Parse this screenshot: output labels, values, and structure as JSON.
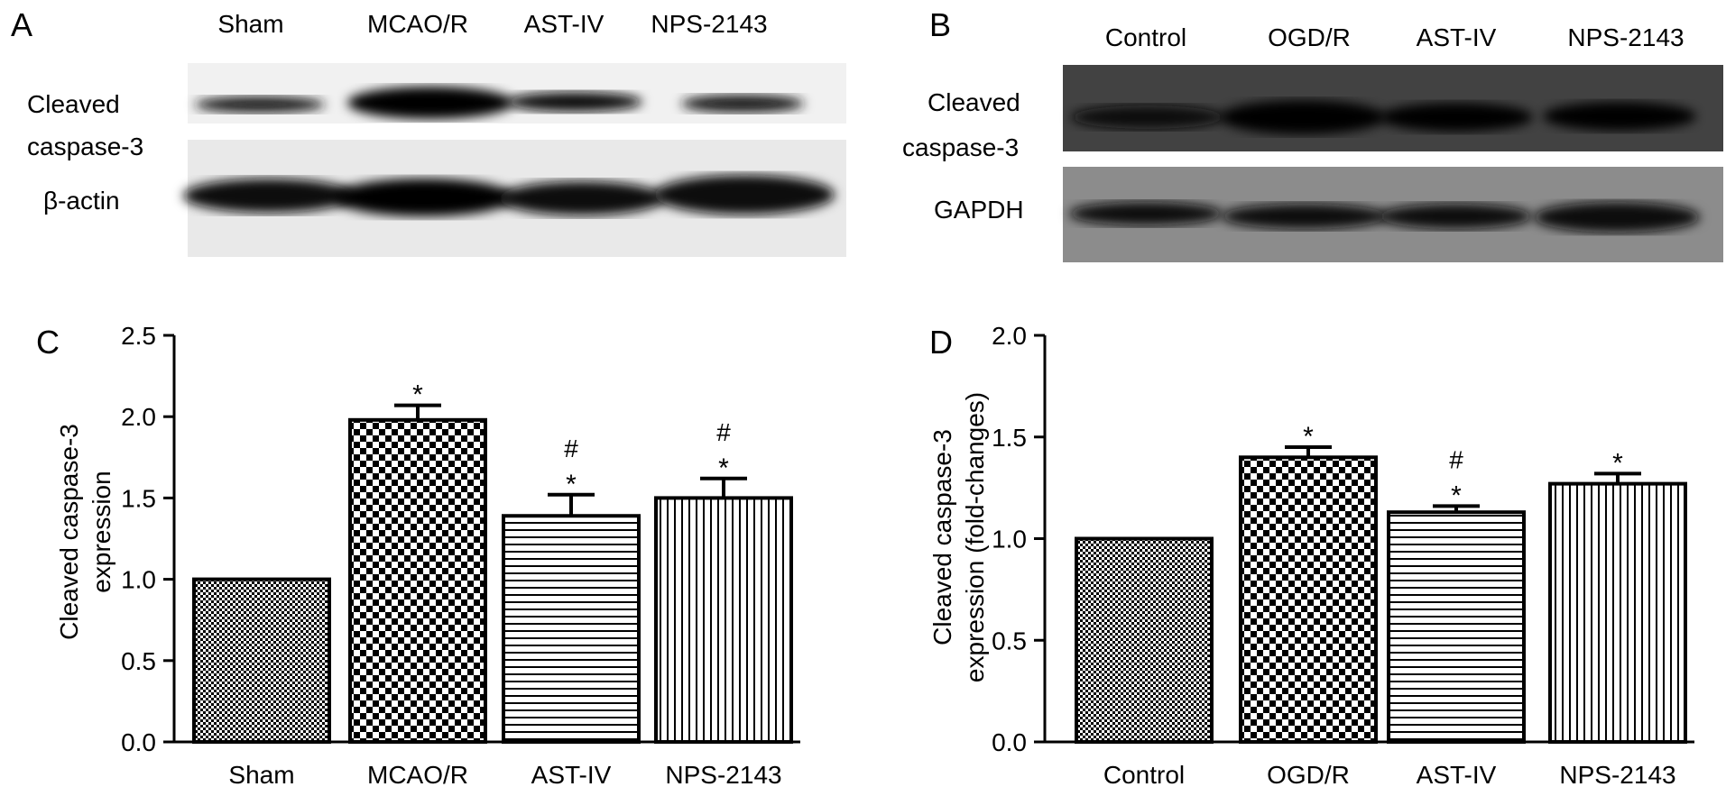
{
  "panels": {
    "A": {
      "letter": "A",
      "lanes": [
        "Sham",
        "MCAO/R",
        "AST-IV",
        "NPS-2143"
      ],
      "row_labels": [
        "Cleaved",
        "caspase-3",
        "β-actin"
      ]
    },
    "B": {
      "letter": "B",
      "lanes": [
        "Control",
        "OGD/R",
        "AST-IV",
        "NPS-2143"
      ],
      "row_labels": [
        "Cleaved",
        "caspase-3",
        "GAPDH"
      ]
    },
    "C": {
      "letter": "C",
      "ylabel_line1": "Cleaved caspase-3",
      "ylabel_line2": "expression"
    },
    "D": {
      "letter": "D",
      "ylabel_line1": "Cleaved caspase-3",
      "ylabel_line2": "expression (fold-changes)"
    }
  },
  "chart_data": [
    {
      "type": "bar",
      "panel": "C",
      "categories": [
        "Sham",
        "MCAO/R",
        "AST-IV",
        "NPS-2143"
      ],
      "values": [
        1.0,
        1.98,
        1.39,
        1.5
      ],
      "errors": [
        0.0,
        0.09,
        0.13,
        0.12
      ],
      "annotations": [
        [],
        [
          "*"
        ],
        [
          "#",
          "*"
        ],
        [
          "#",
          "*"
        ]
      ],
      "patterns": [
        "checker-fine",
        "checker",
        "hstripes",
        "vstripes"
      ],
      "ylim": [
        0.0,
        2.5
      ],
      "yticks": [
        "0.0",
        "0.5",
        "1.0",
        "1.5",
        "2.0",
        "2.5"
      ],
      "grid": false
    },
    {
      "type": "bar",
      "panel": "D",
      "categories": [
        "Control",
        "OGD/R",
        "AST-IV",
        "NPS-2143"
      ],
      "values": [
        1.0,
        1.4,
        1.13,
        1.27
      ],
      "errors": [
        0.0,
        0.05,
        0.03,
        0.05
      ],
      "annotations": [
        [],
        [
          "*"
        ],
        [
          "#",
          "*"
        ],
        [
          "*"
        ]
      ],
      "patterns": [
        "checker-fine",
        "checker",
        "hstripes",
        "vstripes"
      ],
      "ylim": [
        0.0,
        2.0
      ],
      "yticks": [
        "0.0",
        "0.5",
        "1.0",
        "1.5",
        "2.0"
      ],
      "grid": false
    }
  ]
}
